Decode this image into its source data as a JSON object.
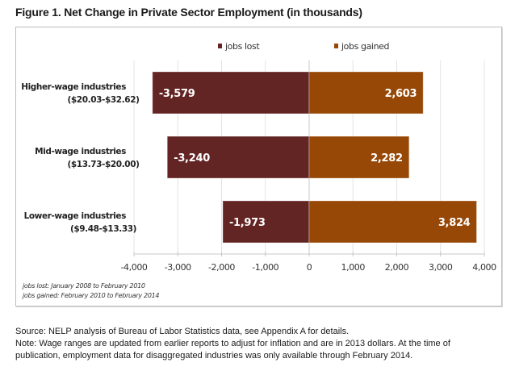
{
  "chart_data": {
    "type": "bar",
    "orientation": "horizontal",
    "title": "Figure 1. Net Change in Private Sector Employment (in thousands)",
    "categories": [
      {
        "line1": "Higher-wage industries",
        "line2": "($20.03-$32.62)"
      },
      {
        "line1": "Mid-wage industries",
        "line2": "($13.73-$20.00)"
      },
      {
        "line1": "Lower-wage industries",
        "line2": "($9.48-$13.33)"
      }
    ],
    "series": [
      {
        "name": "jobs lost",
        "color": "#632523",
        "values": [
          -3579,
          -3240,
          -1973
        ],
        "labels": [
          "-3,579",
          "-3,240",
          "-1,973"
        ]
      },
      {
        "name": "jobs gained",
        "color": "#974806",
        "values": [
          2603,
          2282,
          3824
        ],
        "labels": [
          "2,603",
          "2,282",
          "3,824"
        ]
      }
    ],
    "xlim": [
      -4000,
      4000
    ],
    "xticks": [
      -4000,
      -3000,
      -2000,
      -1000,
      0,
      1000,
      2000,
      3000,
      4000
    ],
    "xtick_labels": [
      "-4,000",
      "-3,000",
      "-2,000",
      "-1,000",
      "0",
      "1,000",
      "2,000",
      "3,000",
      "4,000"
    ],
    "grid": true,
    "legend": "top-center",
    "xlabel": "",
    "ylabel": ""
  },
  "footnotes": [
    "jobs lost: January 2008 to February 2010",
    "jobs gained: February 2010 to February 2014"
  ],
  "source_lines": [
    "Source: NELP analysis of Bureau of Labor Statistics data, see Appendix A for details.",
    "Note: Wage ranges are updated from earlier reports to adjust for inflation and are in 2013 dollars. At the time of",
    "publication, employment data for disaggregated industries was only available through February 2014."
  ]
}
